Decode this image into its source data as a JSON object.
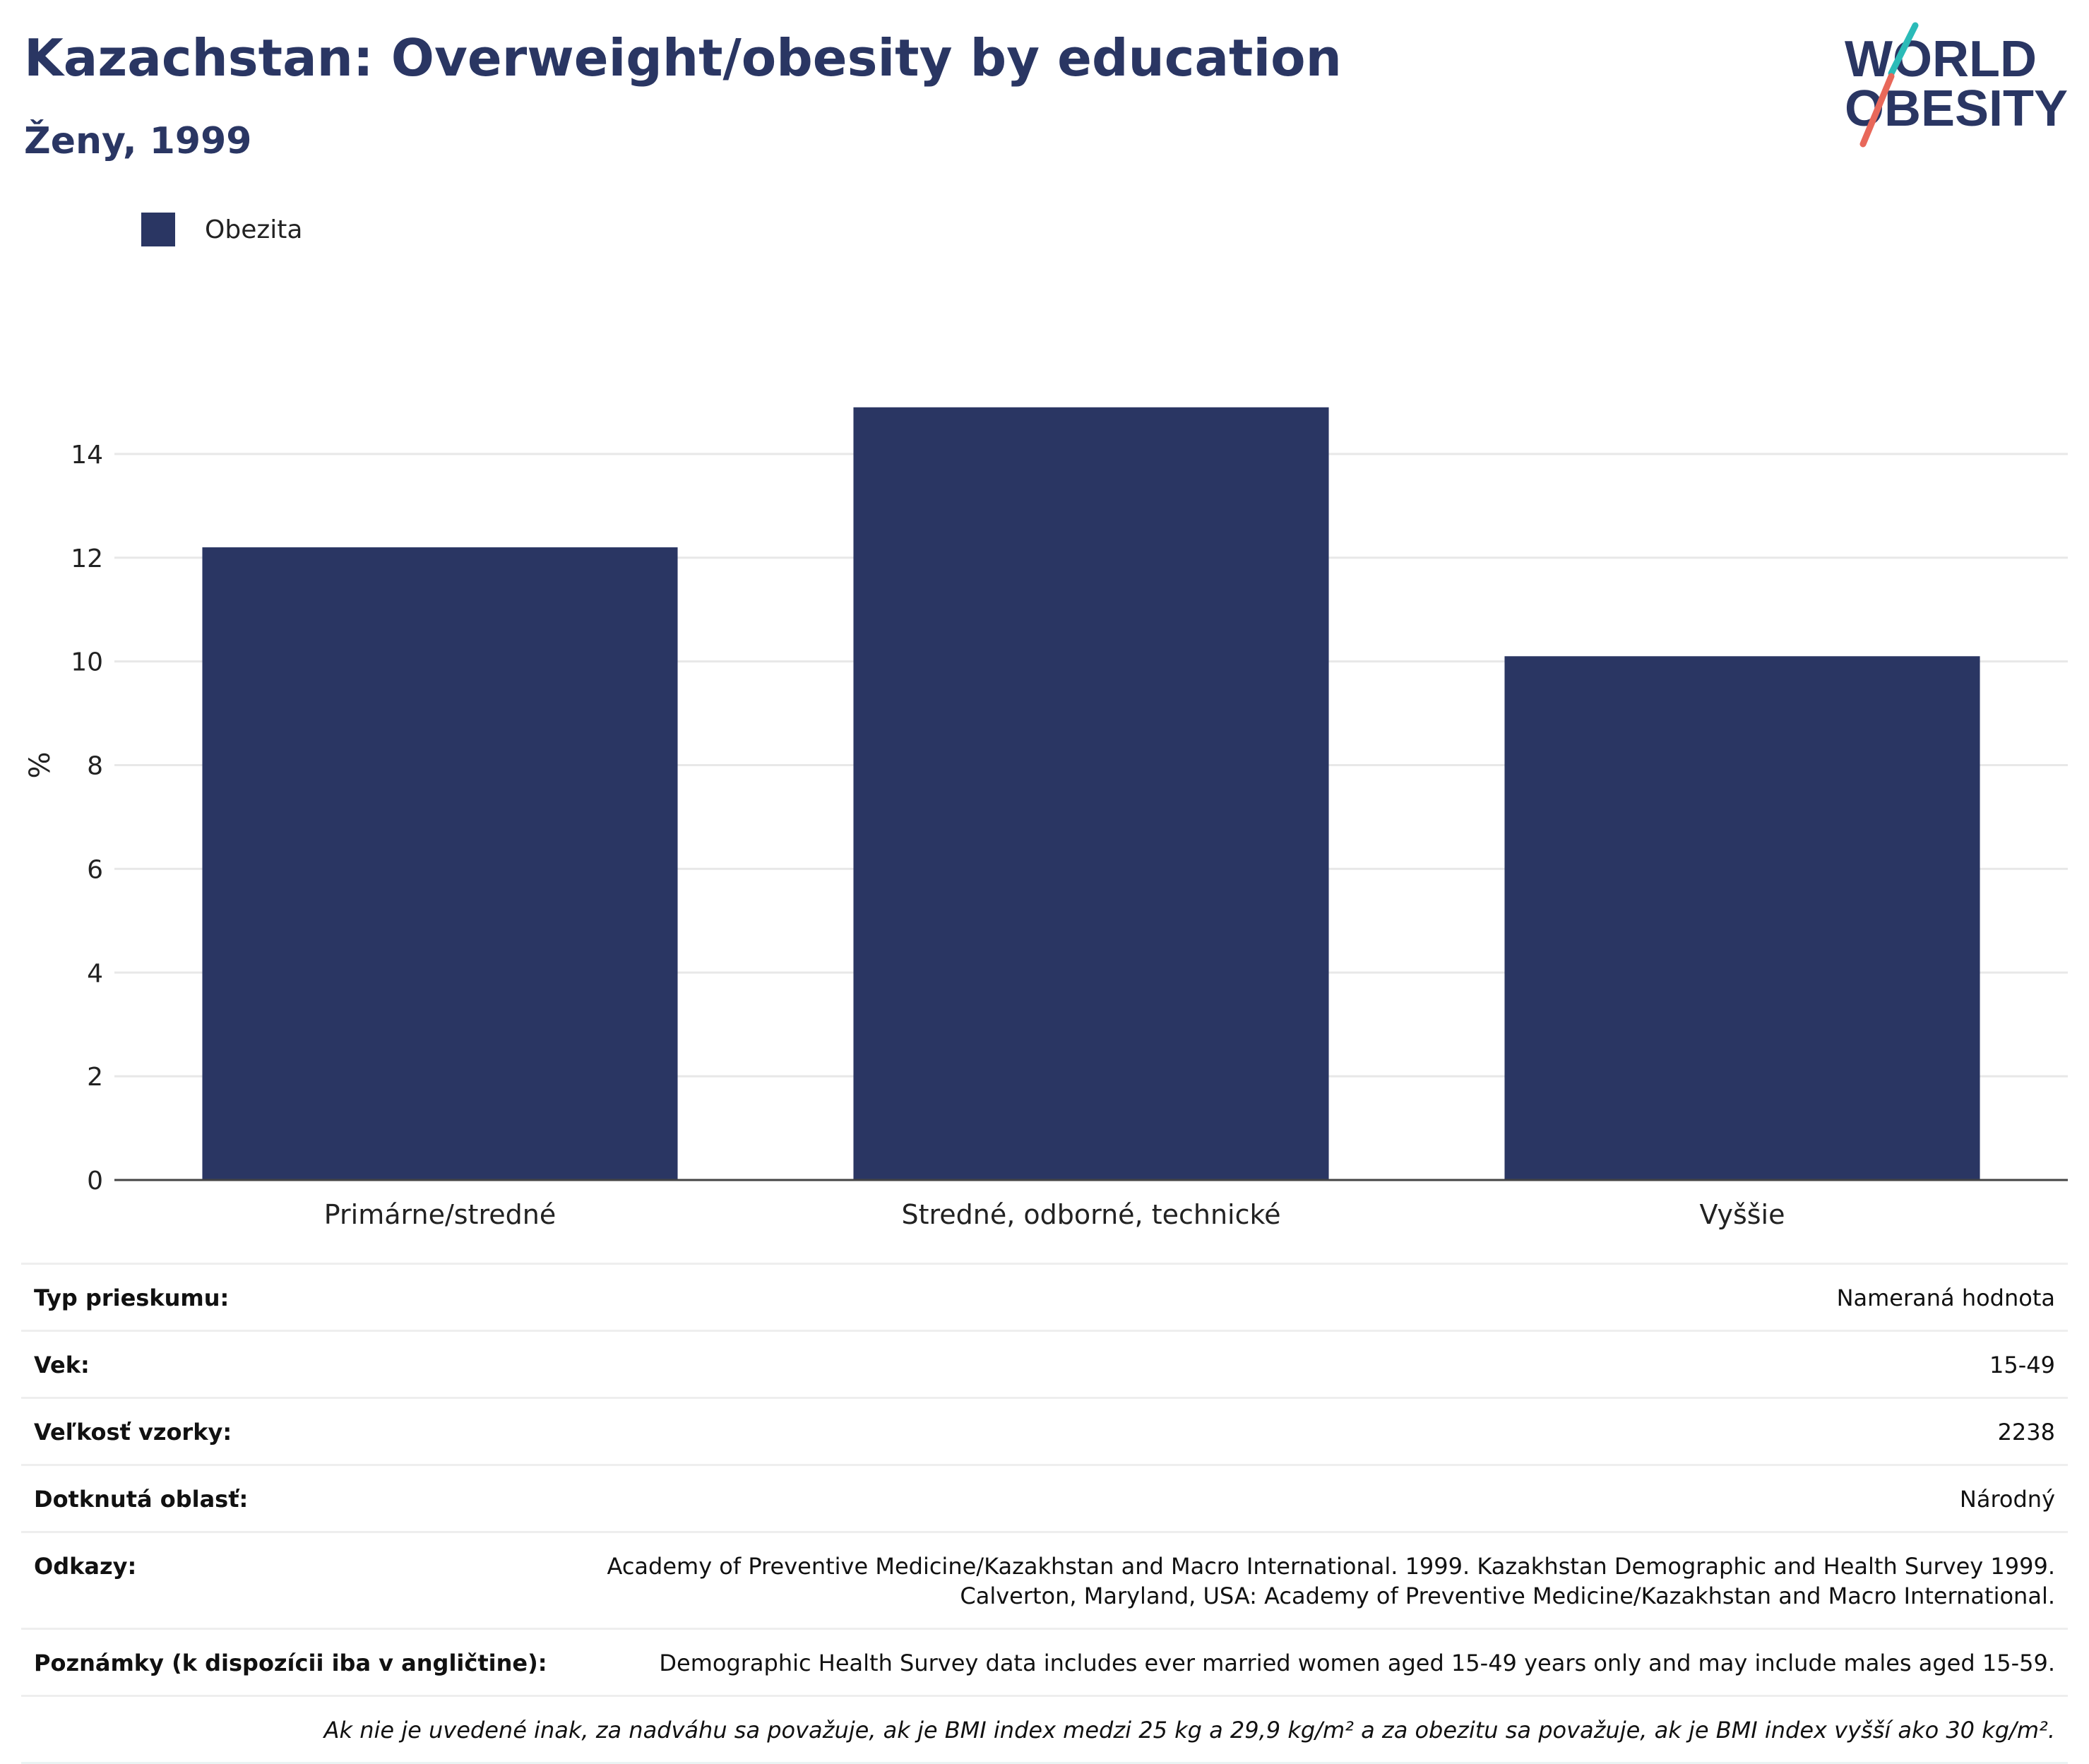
{
  "header": {
    "title": "Kazachstan: Overweight/obesity by education",
    "subtitle": "Ženy, 1999"
  },
  "logo": {
    "line1": "WORLD",
    "line2": "OBESITY"
  },
  "colors": {
    "bar": "#2a3663",
    "title": "#2a3663",
    "grid": "#e8e8e8",
    "axis": "#444444",
    "logo_teal": "#2bbbb8",
    "logo_coral": "#e8685a"
  },
  "legend": {
    "label": "Obezita"
  },
  "chart_data": {
    "type": "bar",
    "categories": [
      "Primárne/stredné",
      "Stredné, odborné, technické",
      "Vyššie"
    ],
    "series": [
      {
        "name": "Obezita",
        "values": [
          12.2,
          14.9,
          10.1
        ]
      }
    ],
    "ylabel": "%",
    "ylim": [
      0,
      16
    ],
    "yticks": [
      0,
      2,
      4,
      6,
      8,
      10,
      12,
      14
    ],
    "grid": true,
    "legend_position": "top-left"
  },
  "metadata": {
    "rows": [
      {
        "label": "Typ prieskumu:",
        "value": "Nameraná hodnota"
      },
      {
        "label": "Vek:",
        "value": "15-49"
      },
      {
        "label": "Veľkosť vzorky:",
        "value": "2238"
      },
      {
        "label": "Dotknutá oblasť:",
        "value": "Národný"
      },
      {
        "label": "Odkazy:",
        "value_lines": [
          "Academy of Preventive Medicine/Kazakhstan and Macro International. 1999. Kazakhstan Demographic and Health Survey 1999.",
          "Calverton, Maryland, USA: Academy of Preventive Medicine/Kazakhstan and Macro International."
        ]
      },
      {
        "label": "Poznámky (k dispozícii iba v angličtine):",
        "value": "Demographic Health Survey data includes ever married women aged 15-49 years only and may include males aged 15-59."
      }
    ],
    "footnote": "Ak nie je uvedené inak, za nadváhu sa považuje, ak je BMI index medzi 25 kg a 29,9 kg/m² a za obezitu sa považuje, ak je BMI index vyšší ako 30 kg/m²."
  }
}
